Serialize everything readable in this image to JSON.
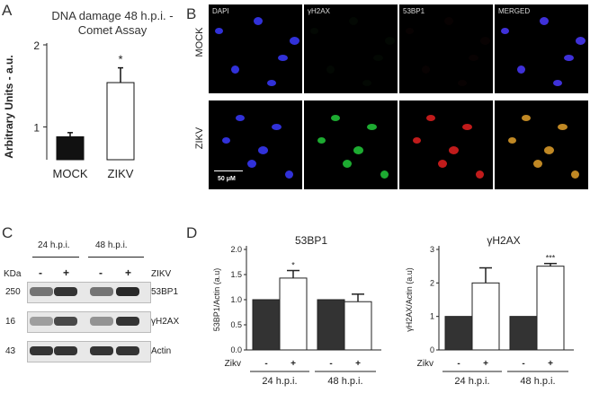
{
  "panels": {
    "a": "A",
    "b": "B",
    "c": "C",
    "d": "D"
  },
  "panel_a_title_line1": "DNA damage 48 h.p.i. -",
  "panel_a_title_line2": "Comet Assay",
  "microscopy": {
    "columns": [
      "DAPI",
      "γH2AX",
      "53BP1",
      "MERGED"
    ],
    "rows": [
      "MOCK",
      "ZIKV"
    ],
    "scale_bar": "50 μM"
  },
  "western_blot": {
    "timepoints": [
      "24 h.p.i.",
      "48 h.p.i."
    ],
    "kda_label": "KDa",
    "treatment_label": "ZIKV",
    "signs": [
      "-",
      "+",
      "-",
      "+"
    ],
    "bands": [
      {
        "kda": "250",
        "protein": "53BP1"
      },
      {
        "kda": "16",
        "protein": "γH2AX"
      },
      {
        "kda": "43",
        "protein": "Actin"
      }
    ]
  },
  "chart_data": [
    {
      "type": "bar",
      "title": "DNA damage 48 h.p.i. - Comet Assay",
      "ylabel": "Arbitrary Units - a.u.",
      "categories": [
        "MOCK",
        "ZIKV"
      ],
      "values": [
        0.88,
        1.54
      ],
      "errors": [
        0.05,
        0.18
      ],
      "bar_colors": [
        "#111111",
        "#ffffff"
      ],
      "significance": [
        "",
        "*"
      ],
      "yticks": [
        "1",
        "2"
      ],
      "ylim": [
        0.6,
        2.0
      ]
    },
    {
      "type": "bar",
      "title": "53BP1",
      "ylabel": "53BP1/Actin (a.u)",
      "categories": [
        "-",
        "+",
        "-",
        "+"
      ],
      "x_prefix": "Zikv",
      "groups": [
        "24 h.p.i.",
        "48 h.p.i."
      ],
      "values": [
        1.0,
        1.43,
        1.0,
        0.96
      ],
      "errors": [
        0,
        0.15,
        0,
        0.15
      ],
      "bar_colors": [
        "#333333",
        "#ffffff",
        "#333333",
        "#ffffff"
      ],
      "significance": [
        "",
        "*",
        "",
        ""
      ],
      "yticks": [
        "0.0",
        "0.5",
        "1.0",
        "1.5",
        "2.0"
      ],
      "ylim": [
        0,
        2.0
      ]
    },
    {
      "type": "bar",
      "title": "γH2AX",
      "ylabel": "γH2AX/Actin (a.u)",
      "categories": [
        "-",
        "+",
        "-",
        "+"
      ],
      "x_prefix": "Zikv",
      "groups": [
        "24 h.p.i.",
        "48 h.p.i."
      ],
      "values": [
        1.0,
        2.0,
        1.0,
        2.5
      ],
      "errors": [
        0,
        0.45,
        0,
        0.08
      ],
      "bar_colors": [
        "#333333",
        "#ffffff",
        "#333333",
        "#ffffff"
      ],
      "significance": [
        "",
        "",
        "",
        "***"
      ],
      "yticks": [
        "0",
        "1",
        "2",
        "3"
      ],
      "ylim": [
        0,
        3
      ]
    }
  ]
}
